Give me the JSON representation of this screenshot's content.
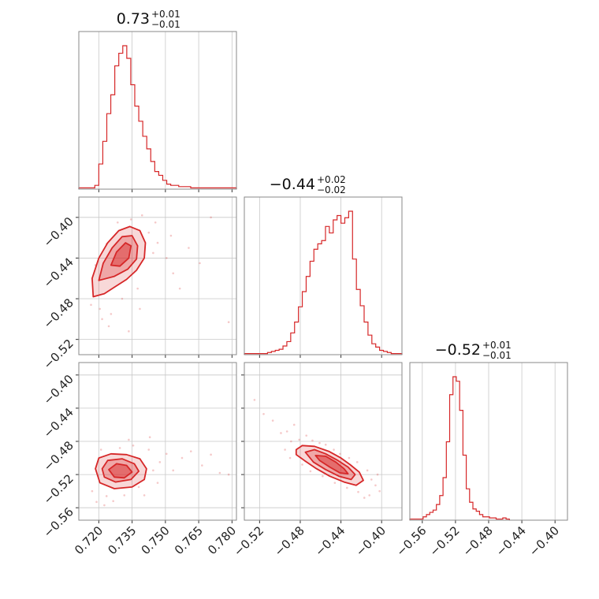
{
  "figure": {
    "type": "corner plot"
  },
  "chart_data": {
    "type": "corner",
    "color": "#d62728",
    "grid": true,
    "parameters": [
      {
        "title_value": "0.73",
        "err_plus": "+0.01",
        "err_minus": "−0.01",
        "range": [
          0.711,
          0.782
        ],
        "ticks": [
          0.72,
          0.735,
          0.75,
          0.765,
          0.78
        ],
        "tick_labels": [
          "0.720",
          "0.735",
          "0.750",
          "0.765",
          "0.780"
        ],
        "histogram": {
          "bin_edges": [
            0.711,
            0.7128,
            0.7146,
            0.7164,
            0.7182,
            0.72,
            0.7218,
            0.7236,
            0.7254,
            0.7272,
            0.729,
            0.7308,
            0.7326,
            0.7344,
            0.7362,
            0.738,
            0.7398,
            0.7416,
            0.7434,
            0.7452,
            0.747,
            0.7488,
            0.7506,
            0.7524,
            0.7542,
            0.756,
            0.7578,
            0.7596,
            0.7614,
            0.7632,
            0.765,
            0.7668,
            0.7686,
            0.7704,
            0.7722,
            0.774,
            0.7758,
            0.7776,
            0.7794,
            0.782
          ],
          "counts": [
            1,
            1,
            1,
            1,
            3,
            20,
            38,
            60,
            75,
            98,
            108,
            114,
            104,
            83,
            66,
            54,
            42,
            32,
            22,
            14,
            11,
            7,
            4,
            3,
            3,
            2,
            2,
            2,
            1,
            1,
            1,
            1,
            1,
            1,
            1,
            1,
            1,
            1,
            1
          ]
        }
      },
      {
        "title_value": "−0.44",
        "err_plus": "+0.02",
        "err_minus": "−0.02",
        "range": [
          -0.535,
          -0.38
        ],
        "ticks": [
          -0.52,
          -0.48,
          -0.44,
          -0.4
        ],
        "tick_labels": [
          "−0.52",
          "−0.48",
          "−0.44",
          "−0.40"
        ],
        "histogram": {
          "bin_edges": [
            -0.535,
            -0.5312,
            -0.5274,
            -0.5236,
            -0.5198,
            -0.516,
            -0.5122,
            -0.5084,
            -0.5046,
            -0.5008,
            -0.497,
            -0.4932,
            -0.4894,
            -0.4856,
            -0.4818,
            -0.478,
            -0.4742,
            -0.4704,
            -0.4666,
            -0.4628,
            -0.459,
            -0.4552,
            -0.4514,
            -0.4476,
            -0.4438,
            -0.44,
            -0.4362,
            -0.4324,
            -0.4286,
            -0.4248,
            -0.421,
            -0.4172,
            -0.4134,
            -0.4096,
            -0.4058,
            -0.402,
            -0.3982,
            -0.3944,
            -0.3906,
            -0.3868,
            -0.383,
            -0.38
          ],
          "counts": [
            1,
            1,
            1,
            1,
            1,
            1,
            2,
            3,
            4,
            5,
            8,
            12,
            20,
            30,
            44,
            58,
            72,
            86,
            97,
            102,
            105,
            118,
            112,
            124,
            128,
            121,
            126,
            132,
            88,
            60,
            45,
            30,
            18,
            10,
            7,
            4,
            3,
            2,
            1,
            1,
            1
          ]
        }
      },
      {
        "title_value": "−0.52",
        "err_plus": "+0.01",
        "err_minus": "−0.01",
        "range": [
          -0.575,
          -0.385
        ],
        "ticks": [
          -0.56,
          -0.52,
          -0.48,
          -0.44,
          -0.4
        ],
        "tick_labels": [
          "−0.56",
          "−0.52",
          "−0.48",
          "−0.44",
          "−0.40"
        ],
        "histogram": {
          "bin_edges": [
            -0.575,
            -0.571,
            -0.567,
            -0.563,
            -0.559,
            -0.555,
            -0.551,
            -0.547,
            -0.543,
            -0.539,
            -0.535,
            -0.531,
            -0.527,
            -0.523,
            -0.519,
            -0.515,
            -0.511,
            -0.507,
            -0.503,
            -0.499,
            -0.495,
            -0.491,
            -0.487,
            -0.483,
            -0.479,
            -0.475,
            -0.471,
            -0.467,
            -0.463,
            -0.459,
            -0.455
          ],
          "counts": [
            1,
            1,
            1,
            1,
            3,
            5,
            7,
            9,
            14,
            22,
            38,
            70,
            112,
            128,
            124,
            98,
            58,
            28,
            16,
            10,
            8,
            5,
            3,
            3,
            2,
            2,
            1,
            1,
            2,
            1
          ]
        }
      }
    ],
    "contour_panels": [
      {
        "x_param": 0,
        "y_param": 1,
        "contour_levels": [
          {
            "fill": true,
            "opacity": 0.18,
            "points": [
              [
                0.7175,
                -0.478
              ],
              [
                0.717,
                -0.46
              ],
              [
                0.72,
                -0.44
              ],
              [
                0.724,
                -0.425
              ],
              [
                0.729,
                -0.413
              ],
              [
                0.734,
                -0.409
              ],
              [
                0.7385,
                -0.413
              ],
              [
                0.741,
                -0.425
              ],
              [
                0.7405,
                -0.44
              ],
              [
                0.737,
                -0.452
              ],
              [
                0.7325,
                -0.461
              ],
              [
                0.7275,
                -0.468
              ],
              [
                0.7225,
                -0.475
              ]
            ]
          },
          {
            "fill": true,
            "opacity": 0.28,
            "points": [
              [
                0.72,
                -0.462
              ],
              [
                0.722,
                -0.445
              ],
              [
                0.726,
                -0.43
              ],
              [
                0.7305,
                -0.419
              ],
              [
                0.735,
                -0.418
              ],
              [
                0.7375,
                -0.428
              ],
              [
                0.737,
                -0.441
              ],
              [
                0.733,
                -0.451
              ],
              [
                0.727,
                -0.458
              ]
            ]
          },
          {
            "fill": true,
            "opacity": 0.45,
            "points": [
              [
                0.7255,
                -0.447
              ],
              [
                0.728,
                -0.434
              ],
              [
                0.732,
                -0.425
              ],
              [
                0.7345,
                -0.428
              ],
              [
                0.7335,
                -0.44
              ],
              [
                0.7295,
                -0.448
              ]
            ]
          }
        ],
        "scatter": [
          [
            0.7165,
            -0.486
          ],
          [
            0.7185,
            -0.447
          ],
          [
            0.7205,
            -0.49
          ],
          [
            0.7215,
            -0.5
          ],
          [
            0.7235,
            -0.426
          ],
          [
            0.7245,
            -0.507
          ],
          [
            0.7255,
            -0.495
          ],
          [
            0.7285,
            -0.405
          ],
          [
            0.7305,
            -0.48
          ],
          [
            0.7345,
            -0.402
          ],
          [
            0.7375,
            -0.47
          ],
          [
            0.7425,
            -0.415
          ],
          [
            0.7445,
            -0.435
          ],
          [
            0.7465,
            -0.425
          ],
          [
            0.7505,
            -0.44
          ],
          [
            0.7535,
            -0.455
          ],
          [
            0.7565,
            -0.47
          ],
          [
            0.7605,
            -0.43
          ],
          [
            0.7655,
            -0.445
          ],
          [
            0.7705,
            -0.4
          ],
          [
            0.7785,
            -0.503
          ],
          [
            0.7385,
            -0.49
          ],
          [
            0.7335,
            -0.512
          ],
          [
            0.7455,
            -0.405
          ],
          [
            0.7525,
            -0.418
          ],
          [
            0.7395,
            -0.398
          ]
        ]
      },
      {
        "x_param": 0,
        "y_param": 2,
        "contour_levels": [
          {
            "fill": true,
            "opacity": 0.18,
            "points": [
              [
                0.7185,
                -0.513
              ],
              [
                0.72,
                -0.5
              ],
              [
                0.7255,
                -0.495
              ],
              [
                0.7325,
                -0.496
              ],
              [
                0.7385,
                -0.501
              ],
              [
                0.7415,
                -0.513
              ],
              [
                0.7405,
                -0.526
              ],
              [
                0.735,
                -0.535
              ],
              [
                0.727,
                -0.537
              ],
              [
                0.7205,
                -0.53
              ]
            ]
          },
          {
            "fill": true,
            "opacity": 0.28,
            "points": [
              [
                0.7215,
                -0.513
              ],
              [
                0.724,
                -0.503
              ],
              [
                0.7305,
                -0.501
              ],
              [
                0.736,
                -0.507
              ],
              [
                0.738,
                -0.516
              ],
              [
                0.7345,
                -0.526
              ],
              [
                0.7275,
                -0.529
              ],
              [
                0.7225,
                -0.523
              ]
            ]
          },
          {
            "fill": true,
            "opacity": 0.45,
            "points": [
              [
                0.7245,
                -0.514
              ],
              [
                0.728,
                -0.507
              ],
              [
                0.7325,
                -0.509
              ],
              [
                0.735,
                -0.517
              ],
              [
                0.7315,
                -0.524
              ],
              [
                0.727,
                -0.523
              ]
            ]
          }
        ],
        "scatter": [
          [
            0.717,
            -0.54
          ],
          [
            0.719,
            -0.553
          ],
          [
            0.721,
            -0.49
          ],
          [
            0.7235,
            -0.546
          ],
          [
            0.7265,
            -0.552
          ],
          [
            0.7295,
            -0.488
          ],
          [
            0.7315,
            -0.545
          ],
          [
            0.7355,
            -0.485
          ],
          [
            0.738,
            -0.535
          ],
          [
            0.7425,
            -0.49
          ],
          [
            0.7445,
            -0.515
          ],
          [
            0.7475,
            -0.505
          ],
          [
            0.7505,
            -0.495
          ],
          [
            0.7535,
            -0.515
          ],
          [
            0.7575,
            -0.5
          ],
          [
            0.7615,
            -0.492
          ],
          [
            0.7665,
            -0.509
          ],
          [
            0.7705,
            -0.496
          ],
          [
            0.7745,
            -0.518
          ],
          [
            0.7785,
            -0.52
          ],
          [
            0.743,
            -0.475
          ],
          [
            0.7335,
            -0.478
          ],
          [
            0.7465,
            -0.53
          ],
          [
            0.7225,
            -0.557
          ],
          [
            0.7405,
            -0.545
          ]
        ]
      },
      {
        "x_param": 1,
        "y_param": 2,
        "contour_levels": [
          {
            "fill": true,
            "opacity": 0.18,
            "points": [
              [
                -0.484,
                -0.49
              ],
              [
                -0.478,
                -0.485
              ],
              [
                -0.466,
                -0.486
              ],
              [
                -0.452,
                -0.492
              ],
              [
                -0.44,
                -0.5
              ],
              [
                -0.431,
                -0.508
              ],
              [
                -0.422,
                -0.517
              ],
              [
                -0.418,
                -0.527
              ],
              [
                -0.425,
                -0.533
              ],
              [
                -0.437,
                -0.529
              ],
              [
                -0.451,
                -0.522
              ],
              [
                -0.464,
                -0.513
              ],
              [
                -0.476,
                -0.503
              ],
              [
                -0.484,
                -0.496
              ]
            ]
          },
          {
            "fill": true,
            "opacity": 0.28,
            "points": [
              [
                -0.475,
                -0.493
              ],
              [
                -0.466,
                -0.49
              ],
              [
                -0.455,
                -0.495
              ],
              [
                -0.443,
                -0.503
              ],
              [
                -0.433,
                -0.511
              ],
              [
                -0.426,
                -0.52
              ],
              [
                -0.43,
                -0.526
              ],
              [
                -0.442,
                -0.522
              ],
              [
                -0.455,
                -0.514
              ],
              [
                -0.467,
                -0.505
              ]
            ]
          },
          {
            "fill": true,
            "opacity": 0.45,
            "points": [
              [
                -0.465,
                -0.497
              ],
              [
                -0.455,
                -0.498
              ],
              [
                -0.445,
                -0.505
              ],
              [
                -0.437,
                -0.513
              ],
              [
                -0.433,
                -0.519
              ],
              [
                -0.441,
                -0.518
              ],
              [
                -0.451,
                -0.511
              ],
              [
                -0.461,
                -0.503
              ]
            ]
          }
        ],
        "scatter": [
          [
            -0.525,
            -0.43
          ],
          [
            -0.516,
            -0.447
          ],
          [
            -0.507,
            -0.455
          ],
          [
            -0.499,
            -0.47
          ],
          [
            -0.493,
            -0.468
          ],
          [
            -0.489,
            -0.48
          ],
          [
            -0.495,
            -0.49
          ],
          [
            -0.486,
            -0.46
          ],
          [
            -0.481,
            -0.478
          ],
          [
            -0.474,
            -0.473
          ],
          [
            -0.468,
            -0.479
          ],
          [
            -0.461,
            -0.482
          ],
          [
            -0.455,
            -0.484
          ],
          [
            -0.447,
            -0.49
          ],
          [
            -0.441,
            -0.495
          ],
          [
            -0.432,
            -0.5
          ],
          [
            -0.424,
            -0.505
          ],
          [
            -0.414,
            -0.515
          ],
          [
            -0.41,
            -0.526
          ],
          [
            -0.406,
            -0.533
          ],
          [
            -0.402,
            -0.54
          ],
          [
            -0.412,
            -0.545
          ],
          [
            -0.423,
            -0.541
          ],
          [
            -0.434,
            -0.536
          ],
          [
            -0.446,
            -0.53
          ],
          [
            -0.458,
            -0.522
          ],
          [
            -0.47,
            -0.516
          ],
          [
            -0.478,
            -0.508
          ],
          [
            -0.49,
            -0.5
          ],
          [
            -0.417,
            -0.548
          ],
          [
            -0.404,
            -0.52
          ]
        ]
      }
    ]
  }
}
